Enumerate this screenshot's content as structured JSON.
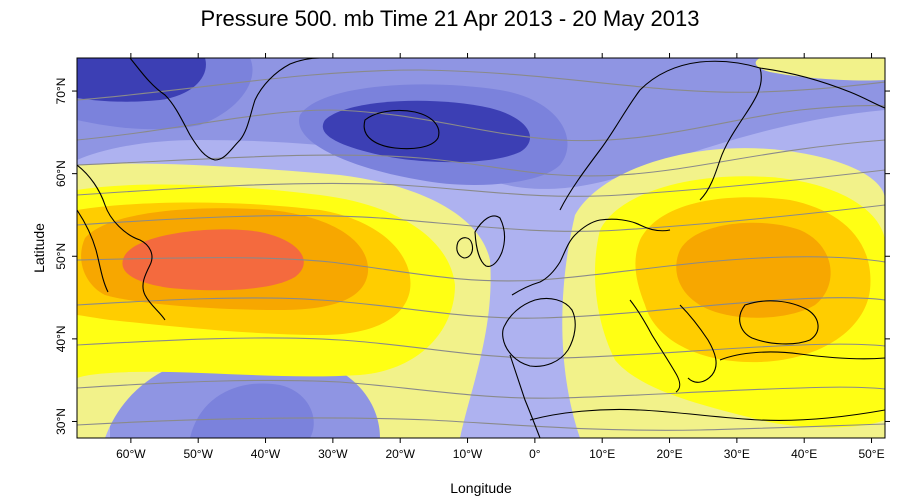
{
  "title": "Pressure 500. mb Time 21 Apr 2013 - 20 May 2013",
  "map": {
    "xlabel": "Longitude",
    "ylabel": "Latitude",
    "x_ticks": [
      "60°W",
      "50°W",
      "40°W",
      "30°W",
      "20°W",
      "10°W",
      "0°",
      "10°E",
      "20°E",
      "30°E",
      "40°E",
      "50°E"
    ],
    "y_ticks": [
      "30°N",
      "40°N",
      "50°N",
      "60°N",
      "70°N"
    ],
    "lon_range": [
      -68,
      52
    ],
    "lat_range": [
      28,
      74
    ],
    "anomaly_palette": {
      "strong_negative": "#3c3fb4",
      "negative": "#7b82dc",
      "weak_negative": "#aeb2f0",
      "neutral": "#c8cbf6",
      "weak_positive": "#f2f28a",
      "positive": "#ffff14",
      "moderate_positive": "#ffcd00",
      "strong_positive": "#f7a700",
      "peak_positive": "#f46a3e"
    },
    "coastline_color": "#000000",
    "contour_color": "#8a8a8a"
  }
}
